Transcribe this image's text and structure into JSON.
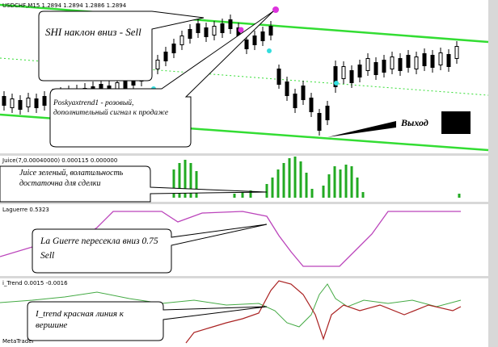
{
  "header": {
    "symbol_info": "USDCHF,M15  1.2894 1.2894 1.2886 1.2894"
  },
  "panels": {
    "juice": {
      "label": "Juice(7,0.00040000) 0.000115 0.000000"
    },
    "laguerre": {
      "label": "Laguerre 0.5323"
    },
    "itrend": {
      "label": "i_Trend 0.0015 -0.0016"
    }
  },
  "footer": {
    "platform": "MetaTrader"
  },
  "callouts": [
    {
      "text": "SHI наклон вниз - Sell"
    },
    {
      "text": "Poskyaxtrend1 - розовый, дополнительный сигнал к продаже"
    },
    {
      "text": "Выход"
    },
    {
      "text": "Juice зеленый, волатильность достаточна для сделки"
    },
    {
      "text": "La Guerre пересекла вниз 0.75 Sell"
    },
    {
      "text": "I_trend красная линия к вершине"
    }
  ]
}
